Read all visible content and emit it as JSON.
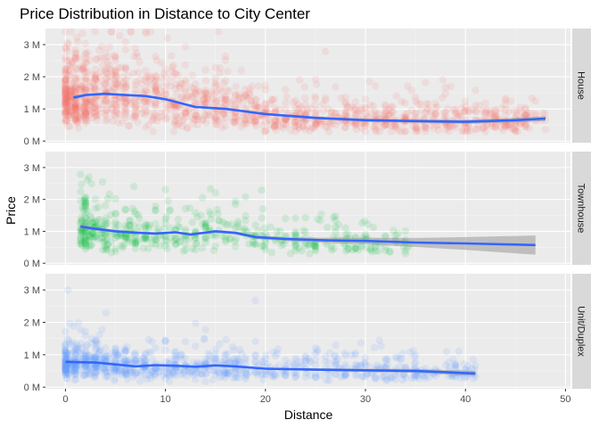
{
  "chart_data": {
    "type": "scatter",
    "title": "Price Distribution in Distance to City Center",
    "xlabel": "Distance",
    "ylabel": "Price",
    "xlim": [
      -2,
      50.5
    ],
    "ylim": [
      -0.05,
      3.5
    ],
    "x_ticks": [
      0,
      10,
      20,
      30,
      40,
      50
    ],
    "x_tick_labels": [
      "0",
      "10",
      "20",
      "30",
      "40",
      "50"
    ],
    "y_ticks": [
      0,
      1,
      2,
      3
    ],
    "y_tick_labels": [
      "0 M",
      "1 M",
      "2 M",
      "3 M"
    ],
    "y_unit": "millions",
    "grid": true,
    "legend": "none",
    "facets": [
      {
        "name": "House",
        "color": "#F8766D",
        "point_density": "very high",
        "point_x_range": [
          0,
          48
        ],
        "point_y_range": [
          0.3,
          3.4
        ],
        "smooth_x": [
          0.8,
          2,
          4,
          6,
          8,
          10,
          13,
          16,
          20,
          25,
          30,
          35,
          40,
          45,
          48
        ],
        "smooth_y": [
          1.35,
          1.43,
          1.47,
          1.43,
          1.4,
          1.3,
          1.06,
          1.0,
          0.84,
          0.72,
          0.65,
          0.62,
          0.6,
          0.65,
          0.7
        ],
        "ci_halfwidth": [
          0.06,
          0.04,
          0.03,
          0.03,
          0.03,
          0.03,
          0.03,
          0.03,
          0.03,
          0.04,
          0.05,
          0.05,
          0.06,
          0.07,
          0.08
        ]
      },
      {
        "name": "Townhouse",
        "color": "#00BA38",
        "point_density": "medium",
        "point_x_range": [
          1.5,
          34.5
        ],
        "point_y_range": [
          0.3,
          3.2
        ],
        "smooth_x": [
          1.5,
          3,
          5,
          7,
          9,
          11,
          12.5,
          15,
          17,
          19,
          22,
          26,
          30,
          35,
          40,
          47
        ],
        "smooth_y": [
          1.15,
          1.08,
          1.0,
          0.96,
          0.93,
          0.97,
          0.9,
          1.0,
          0.95,
          0.82,
          0.76,
          0.72,
          0.7,
          0.65,
          0.62,
          0.57
        ],
        "ci_halfwidth": [
          0.08,
          0.05,
          0.04,
          0.04,
          0.04,
          0.04,
          0.04,
          0.04,
          0.05,
          0.05,
          0.06,
          0.08,
          0.1,
          0.14,
          0.2,
          0.3
        ]
      },
      {
        "name": "Unit/Duplex",
        "color": "#619CFF",
        "point_density": "high",
        "point_x_range": [
          0,
          41
        ],
        "point_y_range": [
          0.1,
          3.0
        ],
        "smooth_x": [
          0,
          3,
          5,
          7,
          9,
          11,
          13,
          15,
          17,
          20,
          25,
          30,
          35,
          41
        ],
        "smooth_y": [
          0.78,
          0.76,
          0.7,
          0.64,
          0.68,
          0.66,
          0.63,
          0.67,
          0.64,
          0.57,
          0.54,
          0.52,
          0.5,
          0.42
        ],
        "ci_halfwidth": [
          0.04,
          0.03,
          0.02,
          0.02,
          0.02,
          0.02,
          0.02,
          0.02,
          0.02,
          0.03,
          0.04,
          0.05,
          0.06,
          0.08
        ]
      }
    ],
    "smooth_line_color": "#3366FF",
    "ci_band_color": "#999999"
  }
}
